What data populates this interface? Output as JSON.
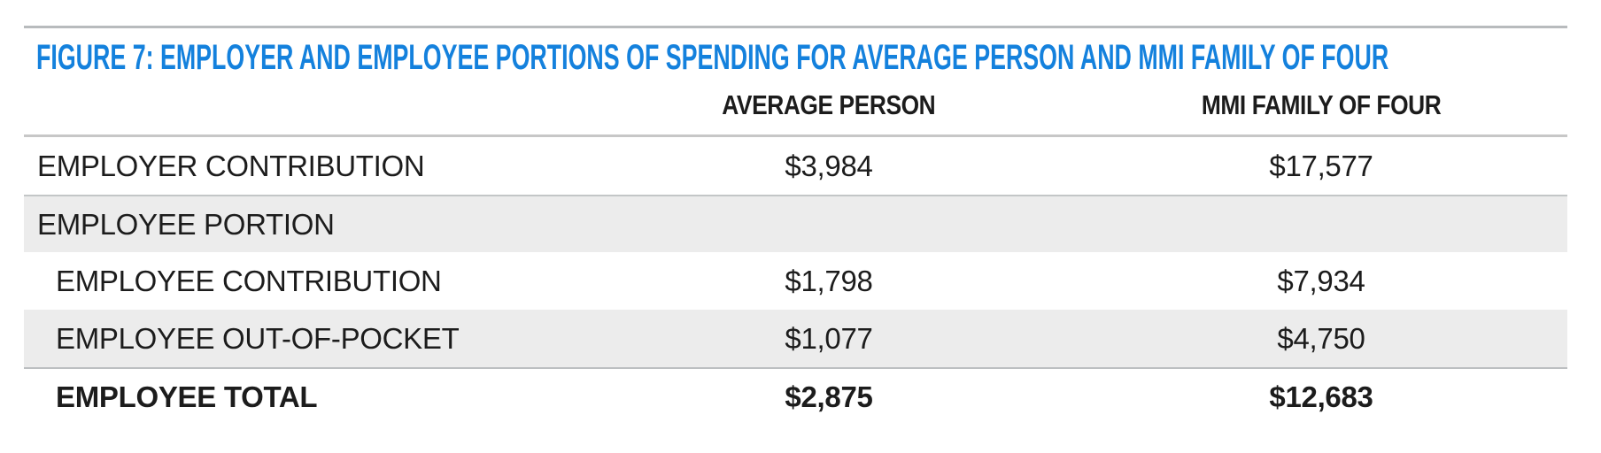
{
  "figure": {
    "title": "FIGURE 7: EMPLOYER AND EMPLOYEE PORTIONS OF SPENDING FOR AVERAGE PERSON AND MMI FAMILY OF FOUR"
  },
  "table": {
    "headers": [
      {
        "label": ""
      },
      {
        "label": "AVERAGE PERSON"
      },
      {
        "label": "MMI FAMILY OF FOUR"
      }
    ],
    "rows": [
      {
        "label": "EMPLOYER CONTRIBUTION",
        "values": [
          "$3,984",
          "$17,577"
        ]
      },
      {
        "label": "EMPLOYEE PORTION",
        "values": [
          "",
          ""
        ]
      },
      {
        "label": "EMPLOYEE CONTRIBUTION",
        "values": [
          "$1,798",
          "$7,934"
        ]
      },
      {
        "label": "EMPLOYEE OUT-OF-POCKET",
        "values": [
          "$1,077",
          "$4,750"
        ]
      },
      {
        "label": "EMPLOYEE TOTAL",
        "values": [
          "$2,875",
          "$12,683"
        ]
      }
    ]
  },
  "colors": {
    "accent_blue": "#1481dd",
    "alt_row_bg": "#ececec",
    "top_rule_gray": "#b8bbbd",
    "border_gray": "#c7c7c7",
    "text": "#1c1c1c"
  }
}
